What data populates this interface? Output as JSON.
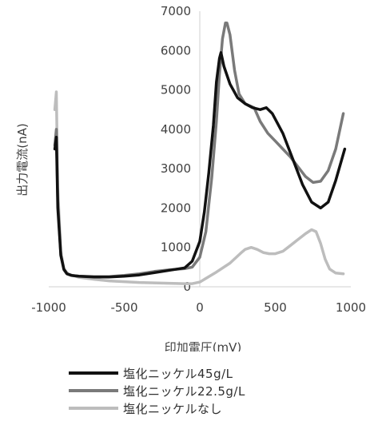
{
  "chart_data": {
    "type": "line",
    "title": "",
    "xlabel": "印加電圧(mV)",
    "ylabel": "出力電流(nA)",
    "xlim": [
      -1000,
      1000
    ],
    "ylim": [
      0,
      7000
    ],
    "xticks": [
      -1000,
      -500,
      0,
      500,
      1000
    ],
    "yticks": [
      0,
      1000,
      2000,
      3000,
      4000,
      5000,
      6000,
      7000
    ],
    "xtick_labels": [
      "-1000",
      "-500",
      "0",
      "500",
      "1000"
    ],
    "ytick_labels": [
      "0",
      "1000",
      "2000",
      "3000",
      "4000",
      "5000",
      "6000",
      "7000"
    ],
    "grid": false,
    "legend_position": "bottom",
    "series": [
      {
        "name": "塩化ニッケル45g/L",
        "color": "#111111",
        "points": [
          [
            -960,
            3500
          ],
          [
            -950,
            3800
          ],
          [
            -940,
            2000
          ],
          [
            -920,
            800
          ],
          [
            -900,
            450
          ],
          [
            -880,
            330
          ],
          [
            -850,
            290
          ],
          [
            -800,
            270
          ],
          [
            -700,
            250
          ],
          [
            -600,
            250
          ],
          [
            -500,
            270
          ],
          [
            -400,
            300
          ],
          [
            -300,
            360
          ],
          [
            -200,
            420
          ],
          [
            -100,
            480
          ],
          [
            -50,
            650
          ],
          [
            0,
            1150
          ],
          [
            30,
            1900
          ],
          [
            60,
            2900
          ],
          [
            90,
            4100
          ],
          [
            110,
            5200
          ],
          [
            130,
            5800
          ],
          [
            140,
            5950
          ],
          [
            160,
            5600
          ],
          [
            200,
            5150
          ],
          [
            250,
            4800
          ],
          [
            300,
            4650
          ],
          [
            350,
            4550
          ],
          [
            400,
            4500
          ],
          [
            440,
            4550
          ],
          [
            480,
            4400
          ],
          [
            550,
            3900
          ],
          [
            620,
            3200
          ],
          [
            680,
            2600
          ],
          [
            740,
            2150
          ],
          [
            800,
            2000
          ],
          [
            850,
            2150
          ],
          [
            900,
            2700
          ],
          [
            960,
            3500
          ]
        ]
      },
      {
        "name": "塩化ニッケル22.5g/L",
        "color": "#7a7a7a",
        "points": [
          [
            -960,
            3600
          ],
          [
            -950,
            4000
          ],
          [
            -940,
            2200
          ],
          [
            -920,
            800
          ],
          [
            -900,
            430
          ],
          [
            -880,
            330
          ],
          [
            -850,
            290
          ],
          [
            -800,
            270
          ],
          [
            -700,
            260
          ],
          [
            -600,
            260
          ],
          [
            -500,
            290
          ],
          [
            -400,
            330
          ],
          [
            -300,
            390
          ],
          [
            -200,
            430
          ],
          [
            -100,
            460
          ],
          [
            -50,
            500
          ],
          [
            0,
            750
          ],
          [
            40,
            1400
          ],
          [
            80,
            2800
          ],
          [
            110,
            4200
          ],
          [
            130,
            5400
          ],
          [
            150,
            6300
          ],
          [
            170,
            6700
          ],
          [
            180,
            6700
          ],
          [
            200,
            6400
          ],
          [
            230,
            5500
          ],
          [
            260,
            4900
          ],
          [
            300,
            4650
          ],
          [
            330,
            4600
          ],
          [
            360,
            4550
          ],
          [
            400,
            4200
          ],
          [
            450,
            3900
          ],
          [
            500,
            3700
          ],
          [
            550,
            3500
          ],
          [
            600,
            3300
          ],
          [
            650,
            3050
          ],
          [
            700,
            2800
          ],
          [
            750,
            2650
          ],
          [
            800,
            2680
          ],
          [
            850,
            2950
          ],
          [
            900,
            3500
          ],
          [
            950,
            4400
          ]
        ]
      },
      {
        "name": "塩化ニッケルなし",
        "color": "#bdbdbd",
        "points": [
          [
            -960,
            4500
          ],
          [
            -950,
            4950
          ],
          [
            -940,
            2500
          ],
          [
            -920,
            900
          ],
          [
            -900,
            450
          ],
          [
            -870,
            320
          ],
          [
            -800,
            240
          ],
          [
            -700,
            190
          ],
          [
            -600,
            150
          ],
          [
            -500,
            130
          ],
          [
            -400,
            110
          ],
          [
            -300,
            100
          ],
          [
            -200,
            90
          ],
          [
            -100,
            80
          ],
          [
            -50,
            80
          ],
          [
            0,
            120
          ],
          [
            100,
            350
          ],
          [
            200,
            600
          ],
          [
            270,
            850
          ],
          [
            300,
            950
          ],
          [
            340,
            1000
          ],
          [
            380,
            950
          ],
          [
            420,
            870
          ],
          [
            460,
            840
          ],
          [
            500,
            840
          ],
          [
            550,
            900
          ],
          [
            600,
            1050
          ],
          [
            650,
            1200
          ],
          [
            700,
            1350
          ],
          [
            740,
            1450
          ],
          [
            770,
            1400
          ],
          [
            800,
            1100
          ],
          [
            830,
            700
          ],
          [
            860,
            450
          ],
          [
            900,
            350
          ],
          [
            950,
            330
          ]
        ]
      }
    ]
  }
}
